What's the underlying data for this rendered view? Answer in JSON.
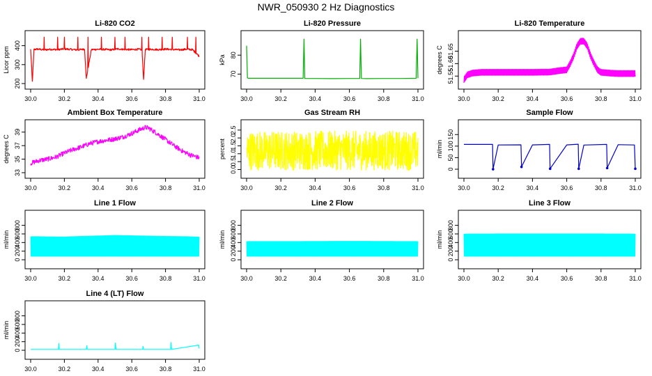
{
  "title": "NWR_050930  2 Hz Diagnostics",
  "chart_data": [
    {
      "type": "line",
      "title": "Li-820 CO2",
      "xlabel": "",
      "ylabel": "Licor ppm",
      "color": "#ff0000",
      "xlim": [
        30.0,
        31.0
      ],
      "ylim": [
        200,
        450
      ],
      "xticks": [
        30.0,
        30.2,
        30.4,
        30.6,
        30.8,
        31.0
      ],
      "xtick_labels": [
        "30.0",
        "30.2",
        "30.4",
        "30.6",
        "30.8",
        "31.0"
      ],
      "yticks": [
        200,
        300,
        400
      ],
      "ytick_labels": [
        "200",
        "300",
        "400"
      ],
      "series": [
        {
          "name": "CO2",
          "x": [
            30.0,
            30.01,
            30.02,
            30.04,
            30.08,
            30.12,
            30.16,
            30.2,
            30.24,
            30.28,
            30.32,
            30.33,
            30.36,
            30.4,
            30.44,
            30.48,
            30.5,
            30.52,
            30.56,
            30.6,
            30.64,
            30.66,
            30.67,
            30.68,
            30.72,
            30.76,
            30.8,
            30.84,
            30.88,
            30.92,
            30.96,
            31.0
          ],
          "y": [
            380,
            210,
            380,
            382,
            378,
            381,
            379,
            383,
            380,
            378,
            382,
            225,
            379,
            381,
            380,
            378,
            381,
            383,
            380,
            379,
            381,
            378,
            220,
            380,
            381,
            379,
            382,
            380,
            378,
            381,
            379,
            345
          ]
        }
      ]
    },
    {
      "type": "line",
      "title": "Li-820 Pressure",
      "xlabel": "",
      "ylabel": "kPa",
      "color": "#00b000",
      "xlim": [
        30.0,
        31.0
      ],
      "ylim": [
        65,
        90
      ],
      "xticks": [
        30.0,
        30.2,
        30.4,
        30.6,
        30.8,
        31.0
      ],
      "xtick_labels": [
        "30.0",
        "30.2",
        "30.4",
        "30.6",
        "30.8",
        "31.0"
      ],
      "yticks": [
        70,
        80
      ],
      "ytick_labels": [
        "70",
        "80"
      ],
      "series": [
        {
          "name": "Pressure",
          "x": [
            30.0,
            30.005,
            30.01,
            30.1,
            30.2,
            30.3,
            30.33,
            30.335,
            30.34,
            30.4,
            30.5,
            30.6,
            30.66,
            30.665,
            30.67,
            30.7,
            30.8,
            30.9,
            30.99,
            30.995,
            31.0
          ],
          "y": [
            85,
            68,
            67.8,
            67.8,
            67.8,
            67.8,
            67.8,
            88.5,
            67.7,
            67.7,
            67.6,
            67.7,
            67.7,
            88.5,
            67.7,
            67.6,
            67.7,
            67.7,
            67.8,
            88.5,
            67.8
          ]
        }
      ]
    },
    {
      "type": "line",
      "title": "Li-820 Temperature",
      "xlabel": "",
      "ylabel": "degrees C",
      "color": "#ff00ff",
      "xlim": [
        30.0,
        31.0
      ],
      "ylim": [
        51.52,
        51.71
      ],
      "xticks": [
        30.0,
        30.2,
        30.4,
        30.6,
        30.8,
        31.0
      ],
      "xtick_labels": [
        "30.0",
        "30.2",
        "30.4",
        "30.6",
        "30.8",
        "31.0"
      ],
      "yticks": [
        51.55,
        51.6,
        51.65
      ],
      "ytick_labels": [
        "51.55",
        "51.60",
        "51.65"
      ],
      "series": [
        {
          "name": "Temperature",
          "x": [
            30.0,
            30.02,
            30.05,
            30.1,
            30.2,
            30.3,
            30.4,
            30.5,
            30.56,
            30.6,
            30.62,
            30.64,
            30.66,
            30.68,
            30.7,
            30.72,
            30.74,
            30.76,
            30.78,
            30.8,
            30.85,
            30.9,
            31.0
          ],
          "y": [
            51.535,
            51.555,
            51.562,
            51.565,
            51.565,
            51.565,
            51.565,
            51.566,
            51.572,
            51.575,
            51.6,
            51.63,
            51.67,
            51.69,
            51.69,
            51.67,
            51.63,
            51.6,
            51.575,
            51.565,
            51.562,
            51.56,
            51.56
          ]
        }
      ]
    },
    {
      "type": "line",
      "title": "Ambient Box Temperature",
      "xlabel": "",
      "ylabel": "degrees C",
      "color": "#ff00ff",
      "xlim": [
        30.0,
        31.0
      ],
      "ylim": [
        33,
        40
      ],
      "xticks": [
        30.0,
        30.2,
        30.4,
        30.6,
        30.8,
        31.0
      ],
      "xtick_labels": [
        "30.0",
        "30.2",
        "30.4",
        "30.6",
        "30.8",
        "31.0"
      ],
      "yticks": [
        33,
        35,
        37,
        39
      ],
      "ytick_labels": [
        "33",
        "35",
        "37",
        "39"
      ],
      "series": [
        {
          "name": "Box Temp",
          "x": [
            30.0,
            30.05,
            30.1,
            30.15,
            30.2,
            30.25,
            30.3,
            30.35,
            30.4,
            30.45,
            30.5,
            30.55,
            30.6,
            30.65,
            30.68,
            30.7,
            30.75,
            30.8,
            30.85,
            30.9,
            30.95,
            31.0
          ],
          "y": [
            34.4,
            34.8,
            35.0,
            35.3,
            35.9,
            36.4,
            36.8,
            37.3,
            37.6,
            37.8,
            38.0,
            38.3,
            38.8,
            39.4,
            39.7,
            39.6,
            38.8,
            37.9,
            37.0,
            36.2,
            35.6,
            35.2
          ]
        }
      ]
    },
    {
      "type": "line",
      "title": "Gas Stream RH",
      "xlabel": "",
      "ylabel": "percent",
      "color": "#ffff00",
      "xlim": [
        30.0,
        31.0
      ],
      "ylim": [
        -0.2,
        2.8
      ],
      "xticks": [
        30.0,
        30.2,
        30.4,
        30.6,
        30.8,
        31.0
      ],
      "xtick_labels": [
        "30.0",
        "30.2",
        "30.4",
        "30.6",
        "30.8",
        "31.0"
      ],
      "yticks": [
        0.0,
        0.5,
        1.0,
        1.5,
        2.0,
        2.5
      ],
      "ytick_labels": [
        "0.0",
        "0.5",
        "1.0",
        "1.5",
        "2.0",
        "2.5"
      ],
      "series": [
        {
          "name": "RH",
          "x": [
            30.0,
            31.0
          ],
          "y": [
            1.2,
            1.2
          ]
        }
      ]
    },
    {
      "type": "line",
      "title": "Sample Flow",
      "xlabel": "",
      "ylabel": "ml/min",
      "color": "#0000cc",
      "xlim": [
        30.0,
        31.0
      ],
      "ylim": [
        -15,
        190
      ],
      "xticks": [
        30.0,
        30.2,
        30.4,
        30.6,
        30.8,
        31.0
      ],
      "xtick_labels": [
        "30.0",
        "30.2",
        "30.4",
        "30.6",
        "30.8",
        "31.0"
      ],
      "yticks": [
        0,
        50,
        100,
        150
      ],
      "ytick_labels": [
        "0",
        "50",
        "100",
        "150"
      ],
      "series": [
        {
          "name": "Sample Flow",
          "x": [
            30.0,
            30.167,
            30.17,
            30.2,
            30.333,
            30.336,
            30.4,
            30.5,
            30.503,
            30.6,
            30.667,
            30.67,
            30.7,
            30.833,
            30.836,
            30.9,
            30.995,
            31.0
          ],
          "y": [
            108,
            106,
            0,
            106,
            105,
            10,
            106,
            106,
            2,
            106,
            107,
            2,
            106,
            107,
            5,
            106,
            106,
            2
          ]
        }
      ]
    },
    {
      "type": "line",
      "title": "Line 1 Flow",
      "xlabel": "",
      "ylabel": "ml/min",
      "color": "#00ffff",
      "xlim": [
        30.0,
        31.0
      ],
      "ylim": [
        -80,
        1020
      ],
      "xticks": [
        30.0,
        30.2,
        30.4,
        30.6,
        30.8,
        31.0
      ],
      "xtick_labels": [
        "30.0",
        "30.2",
        "30.4",
        "30.6",
        "30.8",
        "31.0"
      ],
      "yticks": [
        0,
        200,
        400,
        600,
        800
      ],
      "ytick_labels": [
        "0",
        "200",
        "400",
        "600",
        "800"
      ],
      "series": [
        {
          "name": "Line 1",
          "x": [
            30.0,
            30.1,
            30.2,
            30.3,
            30.4,
            30.5,
            30.6,
            30.7,
            30.8,
            30.9,
            31.0
          ],
          "y": [
            540,
            535,
            532,
            545,
            555,
            568,
            560,
            552,
            545,
            540,
            530
          ]
        }
      ]
    },
    {
      "type": "line",
      "title": "Line 2 Flow",
      "xlabel": "",
      "ylabel": "ml/min",
      "color": "#00ffff",
      "xlim": [
        30.0,
        31.0
      ],
      "ylim": [
        -80,
        1020
      ],
      "xticks": [
        30.0,
        30.2,
        30.4,
        30.6,
        30.8,
        31.0
      ],
      "xtick_labels": [
        "30.0",
        "30.2",
        "30.4",
        "30.6",
        "30.8",
        "31.0"
      ],
      "yticks": [
        0,
        200,
        400,
        600,
        800
      ],
      "ytick_labels": [
        "0",
        "200",
        "400",
        "600",
        "800"
      ],
      "series": [
        {
          "name": "Line 2",
          "x": [
            30.0,
            30.2,
            30.4,
            30.6,
            30.8,
            31.0
          ],
          "y": [
            425,
            425,
            428,
            430,
            428,
            425
          ]
        }
      ]
    },
    {
      "type": "line",
      "title": "Line 3 Flow",
      "xlabel": "",
      "ylabel": "ml/min",
      "color": "#00ffff",
      "xlim": [
        30.0,
        31.0
      ],
      "ylim": [
        -80,
        1020
      ],
      "xticks": [
        30.0,
        30.2,
        30.4,
        30.6,
        30.8,
        31.0
      ],
      "xtick_labels": [
        "30.0",
        "30.2",
        "30.4",
        "30.6",
        "30.8",
        "31.0"
      ],
      "yticks": [
        0,
        200,
        400,
        600,
        800
      ],
      "ytick_labels": [
        "0",
        "200",
        "400",
        "600",
        "800"
      ],
      "series": [
        {
          "name": "Line 3",
          "x": [
            30.0,
            30.2,
            30.4,
            30.6,
            30.8,
            31.0
          ],
          "y": [
            600,
            602,
            603,
            603,
            602,
            600
          ]
        }
      ]
    },
    {
      "type": "line",
      "title": "Line 4 (LT) Flow",
      "xlabel": "",
      "ylabel": "ml/min",
      "color": "#00ffff",
      "xlim": [
        30.0,
        31.0
      ],
      "ylim": [
        -80,
        1020
      ],
      "xticks": [
        30.0,
        30.2,
        30.4,
        30.6,
        30.8,
        31.0
      ],
      "xtick_labels": [
        "30.0",
        "30.2",
        "30.4",
        "30.6",
        "30.8",
        "31.0"
      ],
      "yticks": [
        0,
        200,
        400,
        600,
        800
      ],
      "ytick_labels": [
        "0",
        "200",
        "400",
        "600",
        "800"
      ],
      "series": [
        {
          "name": "Line 4 (LT)",
          "x": [
            30.0,
            30.165,
            30.167,
            30.17,
            30.33,
            30.333,
            30.336,
            30.5,
            30.503,
            30.506,
            30.665,
            30.667,
            30.67,
            30.83,
            30.833,
            30.836,
            30.997,
            31.0
          ],
          "y": [
            20,
            20,
            160,
            20,
            20,
            110,
            20,
            20,
            170,
            20,
            20,
            90,
            20,
            20,
            180,
            20,
            120,
            40
          ]
        }
      ]
    }
  ]
}
